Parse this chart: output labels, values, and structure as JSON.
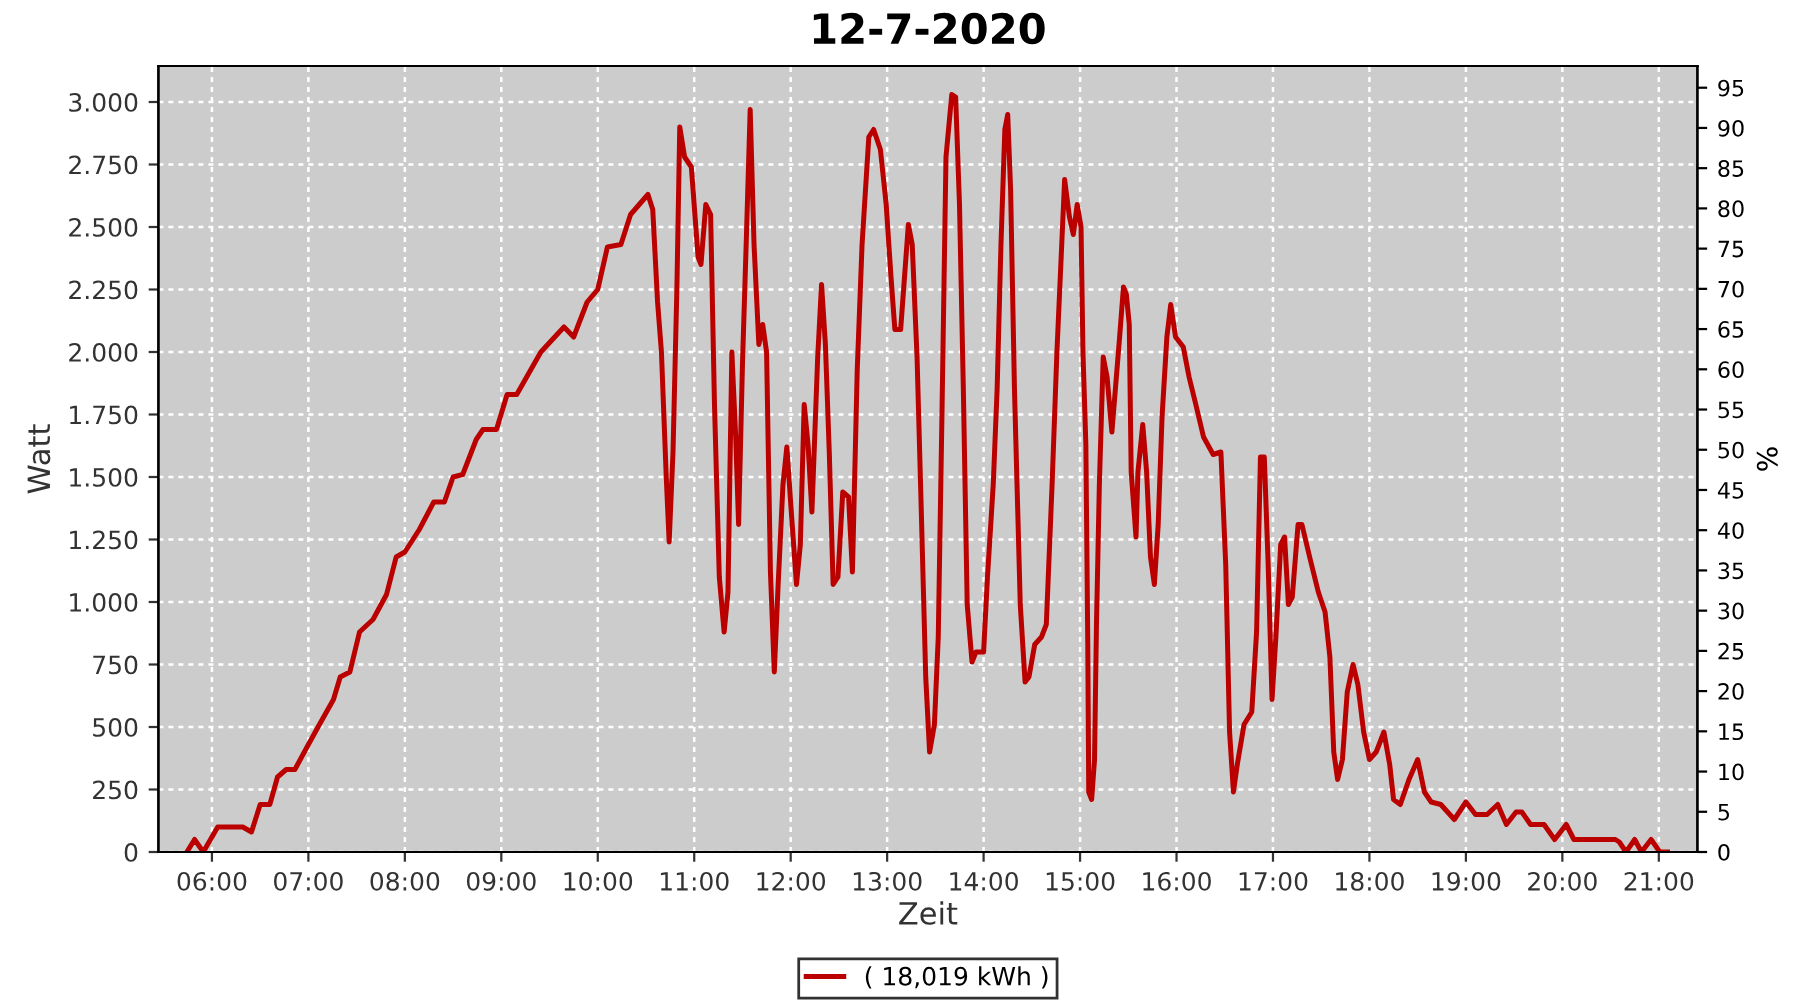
{
  "chart_data": {
    "type": "line",
    "title": "12-7-2020",
    "xlabel": "Zeit",
    "ylabel": "Watt",
    "y2label": "%",
    "xlim": [
      5.445,
      21.4
    ],
    "ylim": [
      0,
      3144
    ],
    "y2lim": [
      0,
      97.7
    ],
    "xticks": [
      {
        "value": 6,
        "label": "06:00"
      },
      {
        "value": 7,
        "label": "07:00"
      },
      {
        "value": 8,
        "label": "08:00"
      },
      {
        "value": 9,
        "label": "09:00"
      },
      {
        "value": 10,
        "label": "10:00"
      },
      {
        "value": 11,
        "label": "11:00"
      },
      {
        "value": 12,
        "label": "12:00"
      },
      {
        "value": 13,
        "label": "13:00"
      },
      {
        "value": 14,
        "label": "14:00"
      },
      {
        "value": 15,
        "label": "15:00"
      },
      {
        "value": 16,
        "label": "16:00"
      },
      {
        "value": 17,
        "label": "17:00"
      },
      {
        "value": 18,
        "label": "18:00"
      },
      {
        "value": 19,
        "label": "19:00"
      },
      {
        "value": 20,
        "label": "20:00"
      },
      {
        "value": 21,
        "label": "21:00"
      }
    ],
    "yticks": [
      0,
      250,
      500,
      750,
      {
        "value": 1000,
        "label": "1.000"
      },
      {
        "value": 1250,
        "label": "1.250"
      },
      {
        "value": 1500,
        "label": "1.500"
      },
      {
        "value": 1750,
        "label": "1.750"
      },
      {
        "value": 2000,
        "label": "2.000"
      },
      {
        "value": 2250,
        "label": "2.250"
      },
      {
        "value": 2500,
        "label": "2.500"
      },
      {
        "value": 2750,
        "label": "2.750"
      },
      {
        "value": 3000,
        "label": "3.000"
      }
    ],
    "y2ticks": [
      0,
      5,
      10,
      15,
      20,
      25,
      30,
      35,
      40,
      45,
      50,
      55,
      60,
      65,
      70,
      75,
      80,
      85,
      90,
      95
    ],
    "grid": true,
    "legend": "bottom",
    "line_style": "solid",
    "marker": "none",
    "series": [
      {
        "name": "( 18,019 kWh )",
        "color": "#bb0000",
        "x": [
          5.74,
          5.82,
          5.91,
          6.0,
          6.06,
          6.32,
          6.41,
          6.5,
          6.6,
          6.68,
          6.77,
          6.86,
          7.0,
          7.1,
          7.26,
          7.33,
          7.43,
          7.53,
          7.67,
          7.81,
          7.91,
          8.0,
          8.15,
          8.3,
          8.41,
          8.5,
          8.6,
          8.74,
          8.81,
          8.95,
          9.06,
          9.16,
          9.41,
          9.65,
          9.75,
          9.89,
          10.0,
          10.1,
          10.24,
          10.34,
          10.52,
          10.57,
          10.62,
          10.66,
          10.71,
          10.74,
          10.78,
          10.82,
          10.85,
          10.9,
          10.97,
          11.04,
          11.07,
          11.12,
          11.17,
          11.21,
          11.26,
          11.31,
          11.35,
          11.39,
          11.43,
          11.46,
          11.5,
          11.54,
          11.58,
          11.62,
          11.67,
          11.71,
          11.75,
          11.79,
          11.83,
          11.87,
          11.92,
          11.96,
          12.01,
          12.06,
          12.1,
          12.14,
          12.18,
          12.22,
          12.28,
          12.32,
          12.36,
          12.4,
          12.44,
          12.49,
          12.54,
          12.6,
          12.64,
          12.69,
          12.74,
          12.81,
          12.86,
          12.93,
          12.99,
          13.04,
          13.08,
          13.14,
          13.18,
          13.22,
          13.26,
          13.31,
          13.35,
          13.4,
          13.44,
          13.49,
          13.53,
          13.57,
          13.61,
          13.67,
          13.71,
          13.75,
          13.79,
          13.83,
          13.88,
          13.92,
          14.0,
          14.04,
          14.1,
          14.14,
          14.18,
          14.22,
          14.25,
          14.28,
          14.32,
          14.38,
          14.43,
          14.47,
          14.53,
          14.6,
          14.65,
          14.71,
          14.76,
          14.81,
          14.84,
          14.89,
          14.93,
          14.97,
          15.01,
          15.03,
          15.06,
          15.08,
          15.09,
          15.12,
          15.15,
          15.17,
          15.2,
          15.24,
          15.28,
          15.33,
          15.37,
          15.41,
          15.45,
          15.48,
          15.51,
          15.53,
          15.58,
          15.6,
          15.65,
          15.69,
          15.73,
          15.77,
          15.81,
          15.85,
          15.9,
          15.94,
          15.99,
          16.07,
          16.13,
          16.2,
          16.28,
          16.38,
          16.46,
          16.51,
          16.55,
          16.59,
          16.63,
          16.7,
          16.78,
          16.83,
          16.87,
          16.91,
          16.95,
          16.99,
          17.03,
          17.08,
          17.12,
          17.16,
          17.2,
          17.26,
          17.3,
          17.38,
          17.47,
          17.54,
          17.59,
          17.63,
          17.67,
          17.72,
          17.77,
          17.83,
          17.88,
          17.94,
          18.0,
          18.07,
          18.15,
          18.21,
          18.25,
          18.32,
          18.41,
          18.5,
          18.57,
          18.64,
          18.74,
          18.88,
          19.0,
          19.1,
          19.22,
          19.33,
          19.42,
          19.52,
          19.58,
          19.67,
          19.81,
          19.92,
          20.04,
          20.12,
          20.55,
          20.59,
          20.66,
          20.75,
          20.82,
          20.92,
          21.01,
          21.09
        ],
        "values": [
          0,
          50,
          0,
          60,
          100,
          100,
          80,
          190,
          190,
          300,
          330,
          330,
          430,
          500,
          610,
          700,
          720,
          880,
          930,
          1030,
          1180,
          1200,
          1290,
          1400,
          1400,
          1500,
          1510,
          1650,
          1690,
          1690,
          1830,
          1830,
          2000,
          2100,
          2060,
          2200,
          2250,
          2420,
          2430,
          2550,
          2630,
          2570,
          2200,
          2000,
          1500,
          1240,
          1600,
          2250,
          2900,
          2780,
          2740,
          2380,
          2350,
          2590,
          2550,
          1790,
          1100,
          880,
          1040,
          2000,
          1660,
          1310,
          1950,
          2450,
          2970,
          2430,
          2030,
          2110,
          2000,
          1120,
          720,
          1070,
          1470,
          1620,
          1340,
          1070,
          1230,
          1790,
          1630,
          1360,
          1980,
          2270,
          2030,
          1600,
          1070,
          1100,
          1440,
          1420,
          1120,
          1930,
          2430,
          2860,
          2890,
          2810,
          2590,
          2300,
          2090,
          2090,
          2300,
          2510,
          2430,
          1980,
          1420,
          700,
          400,
          510,
          860,
          1790,
          2780,
          3030,
          3020,
          2590,
          1850,
          990,
          760,
          800,
          800,
          1100,
          1470,
          1850,
          2430,
          2890,
          2950,
          2650,
          1850,
          990,
          680,
          700,
          830,
          860,
          910,
          1470,
          2000,
          2430,
          2690,
          2540,
          2470,
          2590,
          2500,
          2000,
          1630,
          830,
          240,
          210,
          370,
          910,
          1470,
          1980,
          1900,
          1680,
          1870,
          2060,
          2260,
          2230,
          2110,
          1520,
          1260,
          1520,
          1710,
          1520,
          1180,
          1070,
          1310,
          1740,
          2060,
          2190,
          2060,
          2020,
          1900,
          1790,
          1660,
          1590,
          1600,
          1150,
          480,
          240,
          350,
          510,
          560,
          880,
          1580,
          1580,
          1150,
          610,
          860,
          1230,
          1260,
          990,
          1020,
          1310,
          1310,
          1180,
          1040,
          960,
          780,
          400,
          290,
          370,
          640,
          750,
          670,
          480,
          370,
          400,
          480,
          350,
          210,
          190,
          290,
          370,
          240,
          200,
          190,
          130,
          200,
          150,
          150,
          190,
          110,
          160,
          160,
          110,
          110,
          50,
          110,
          50,
          50,
          40,
          0,
          50,
          0,
          50,
          0,
          0
        ]
      }
    ]
  }
}
